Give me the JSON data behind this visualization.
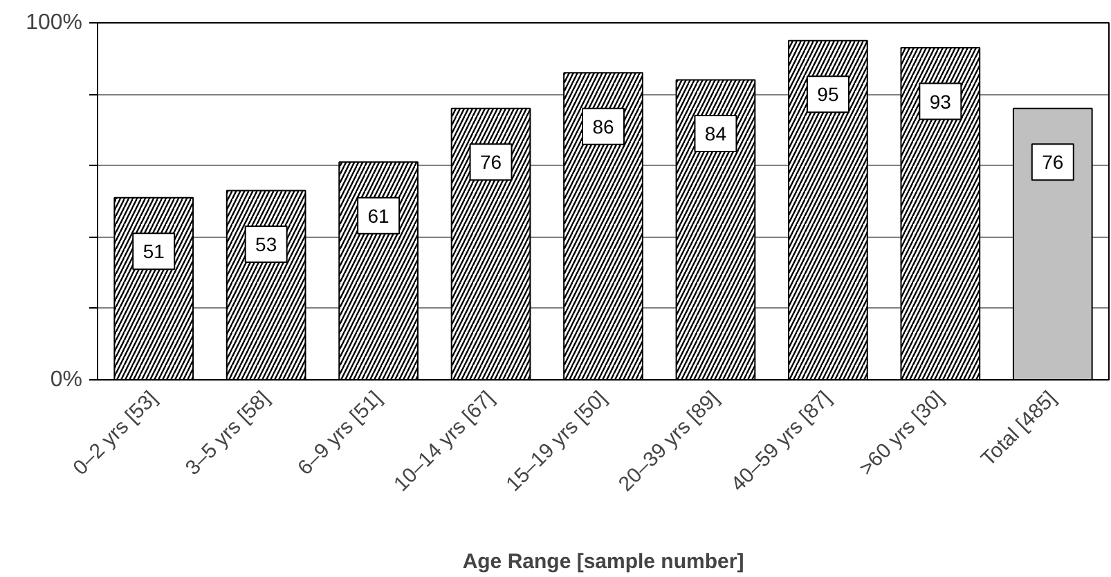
{
  "chart_data": {
    "type": "bar",
    "xlabel": "Age Range [sample number]",
    "categories": [
      "0–2 yrs [53]",
      "3–5 yrs [58]",
      "6–9 yrs [51]",
      "10–14 yrs [67]",
      "15–19 yrs [50]",
      "20–39 yrs [89]",
      "40–59 yrs [87]",
      ">60 yrs [30]",
      "Total [485]"
    ],
    "values": [
      51,
      53,
      61,
      76,
      86,
      84,
      95,
      93,
      76
    ],
    "colors": [
      "#000000",
      "#000000",
      "#000000",
      "#000000",
      "#000000",
      "#000000",
      "#000000",
      "#000000",
      "#c0c0c0"
    ],
    "ylim": [
      0,
      100
    ],
    "yticks": [
      {
        "value": 0,
        "label": "0%"
      },
      {
        "value": 20,
        "label": null
      },
      {
        "value": 40,
        "label": null
      },
      {
        "value": 60,
        "label": null
      },
      {
        "value": 80,
        "label": null
      },
      {
        "value": 100,
        "label": "100%"
      }
    ],
    "grid": "y",
    "data_labels": true
  }
}
